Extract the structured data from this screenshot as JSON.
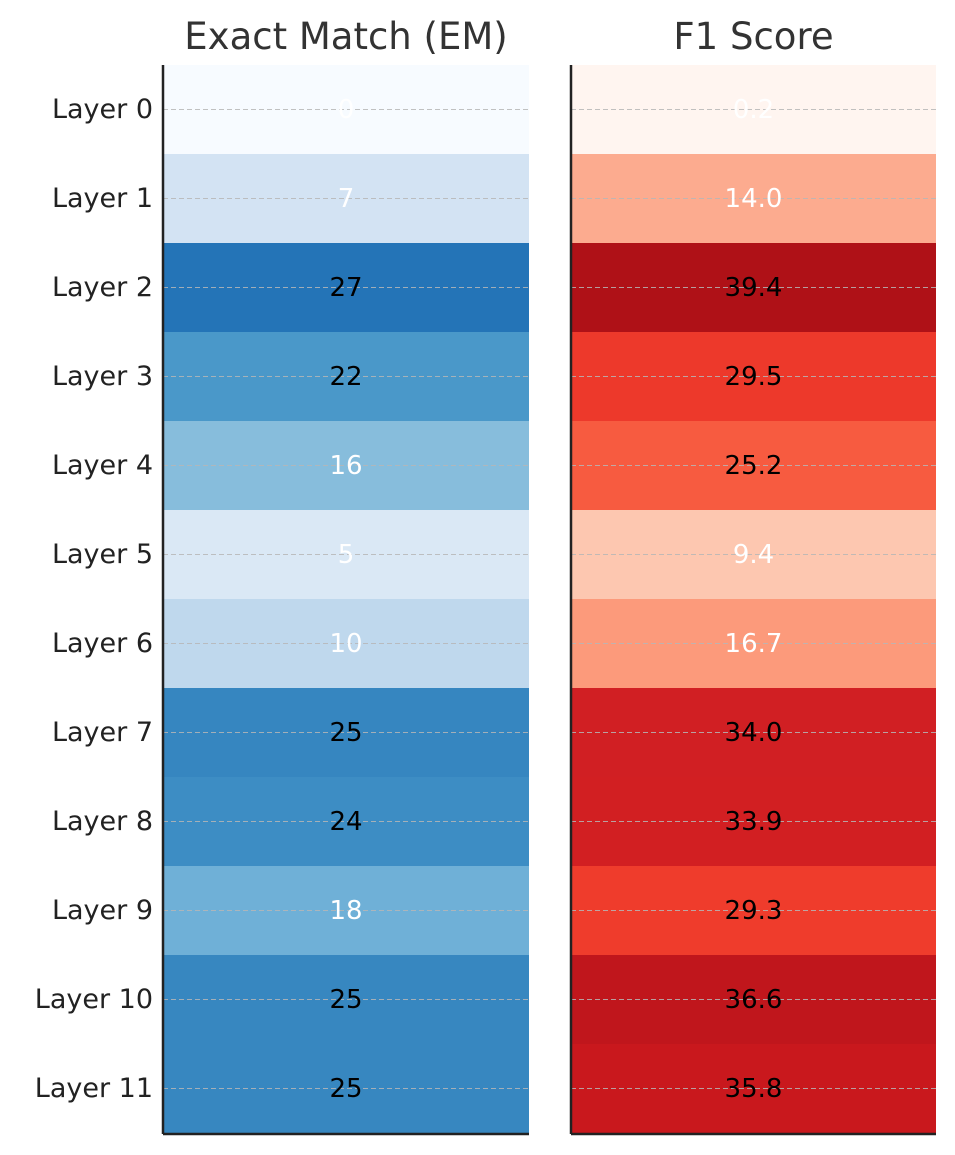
{
  "chart_data": [
    {
      "type": "heatmap",
      "title": "Exact Match (EM)",
      "categories": [
        "Layer 0",
        "Layer 1",
        "Layer 2",
        "Layer 3",
        "Layer 4",
        "Layer 5",
        "Layer 6",
        "Layer 7",
        "Layer 8",
        "Layer 9",
        "Layer 10",
        "Layer 11"
      ],
      "values": [
        0,
        7,
        27,
        22,
        16,
        5,
        10,
        25,
        24,
        18,
        25,
        25
      ],
      "value_labels": [
        "0",
        "7",
        "27",
        "22",
        "16",
        "5",
        "10",
        "25",
        "24",
        "18",
        "25",
        "25"
      ],
      "colormap": "blues",
      "colors": [
        "#f7fbff",
        "#d3e3f3",
        "#2474b7",
        "#4a98c9",
        "#87bddc",
        "#dae8f5",
        "#bfd8ed",
        "#3686c0",
        "#3d8dc4",
        "#6fb0d7",
        "#3787c0",
        "#3787c0"
      ],
      "label_colors": [
        "#ffffff",
        "#ffffff",
        "#000000",
        "#000000",
        "#ffffff",
        "#ffffff",
        "#ffffff",
        "#000000",
        "#000000",
        "#ffffff",
        "#000000",
        "#000000"
      ],
      "grid": true
    },
    {
      "type": "heatmap",
      "title": "F1 Score",
      "categories": [
        "Layer 0",
        "Layer 1",
        "Layer 2",
        "Layer 3",
        "Layer 4",
        "Layer 5",
        "Layer 6",
        "Layer 7",
        "Layer 8",
        "Layer 9",
        "Layer 10",
        "Layer 11"
      ],
      "values": [
        0.2,
        14.0,
        39.4,
        29.5,
        25.2,
        9.4,
        16.7,
        34.0,
        33.9,
        29.3,
        36.6,
        35.8
      ],
      "value_labels": [
        "0.2",
        "14.0",
        "39.4",
        "29.5",
        "25.2",
        "9.4",
        "16.7",
        "34.0",
        "33.9",
        "29.3",
        "36.6",
        "35.8"
      ],
      "colormap": "reds",
      "colors": [
        "#fff5f0",
        "#fcab8f",
        "#af1117",
        "#ed392b",
        "#f75b40",
        "#fdc7b0",
        "#fc9a7b",
        "#d11f23",
        "#d21f22",
        "#ef3c2c",
        "#c0161c",
        "#c9181d"
      ],
      "label_colors": [
        "#ffffff",
        "#ffffff",
        "#000000",
        "#000000",
        "#000000",
        "#ffffff",
        "#ffffff",
        "#000000",
        "#000000",
        "#000000",
        "#000000",
        "#000000"
      ],
      "grid": true
    }
  ]
}
